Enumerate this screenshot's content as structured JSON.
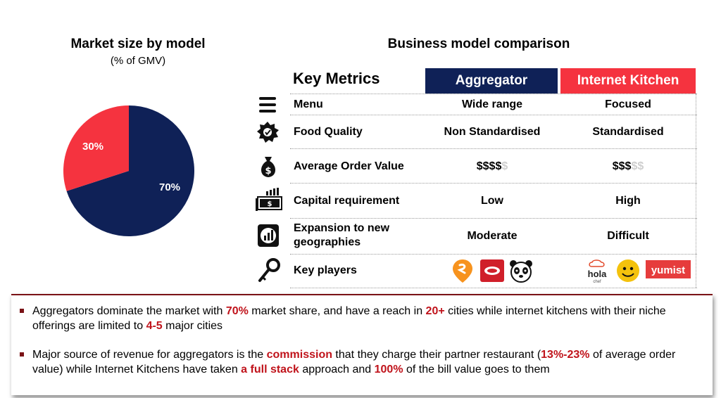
{
  "chart_data": {
    "type": "pie",
    "title": "Market size by model",
    "subtitle": "(% of GMV)",
    "slices": [
      {
        "label": "70%",
        "value": 70,
        "color": "#0f2157"
      },
      {
        "label": "30%",
        "value": 30,
        "color": "#f5333f"
      }
    ]
  },
  "comparison": {
    "title": "Business model comparison",
    "metric_header": "Key Metrics",
    "columns": [
      {
        "label": "Aggregator",
        "color": "#0f2157"
      },
      {
        "label": "Internet Kitchen",
        "color": "#f5333f"
      }
    ],
    "rows": [
      {
        "metric": "Menu",
        "aggregator": "Wide range",
        "internet_kitchen": "Focused",
        "icon": "menu-icon"
      },
      {
        "metric": "Food Quality",
        "aggregator": "Non Standardised",
        "internet_kitchen": "Standardised",
        "icon": "badge-icon"
      },
      {
        "metric": "Average Order Value",
        "icon": "money-bag-icon",
        "aggregator_price": {
          "filled": "$$$$",
          "empty": "$"
        },
        "internet_kitchen_price": {
          "filled": "$$$",
          "empty": "$$"
        }
      },
      {
        "metric": "Capital requirement",
        "aggregator": "Low",
        "internet_kitchen": "High",
        "icon": "cash-chart-icon"
      },
      {
        "metric": "Expansion to new geographies",
        "aggregator": "Moderate",
        "internet_kitchen": "Difficult",
        "icon": "bar-chart-icon"
      },
      {
        "metric": "Key players",
        "icon": "key-icon"
      }
    ],
    "logos": {
      "holachef": "hola",
      "holachef_sub": "chef",
      "yumist": "yumist"
    }
  },
  "notes": [
    {
      "segments": [
        {
          "t": "Aggregators dominate the market with ",
          "h": false
        },
        {
          "t": "70%",
          "h": true
        },
        {
          "t": " market share, and have a reach in ",
          "h": false
        },
        {
          "t": "20+",
          "h": true
        },
        {
          "t": " cities while internet kitchens with their niche offerings are limited to ",
          "h": false
        },
        {
          "t": "4-5",
          "h": true
        },
        {
          "t": " major cities",
          "h": false
        }
      ]
    },
    {
      "segments": [
        {
          "t": "Major source of revenue for aggregators is the ",
          "h": false
        },
        {
          "t": "commission",
          "h": true
        },
        {
          "t": " that they charge their partner restaurant (",
          "h": false
        },
        {
          "t": "13%-23%",
          "h": true
        },
        {
          "t": " of average order value) while Internet Kitchens have taken ",
          "h": false
        },
        {
          "t": "a full stack",
          "h": true
        },
        {
          "t": " approach and ",
          "h": false
        },
        {
          "t": "100%",
          "h": true
        },
        {
          "t": " of the bill value goes to them",
          "h": false
        }
      ]
    }
  ]
}
